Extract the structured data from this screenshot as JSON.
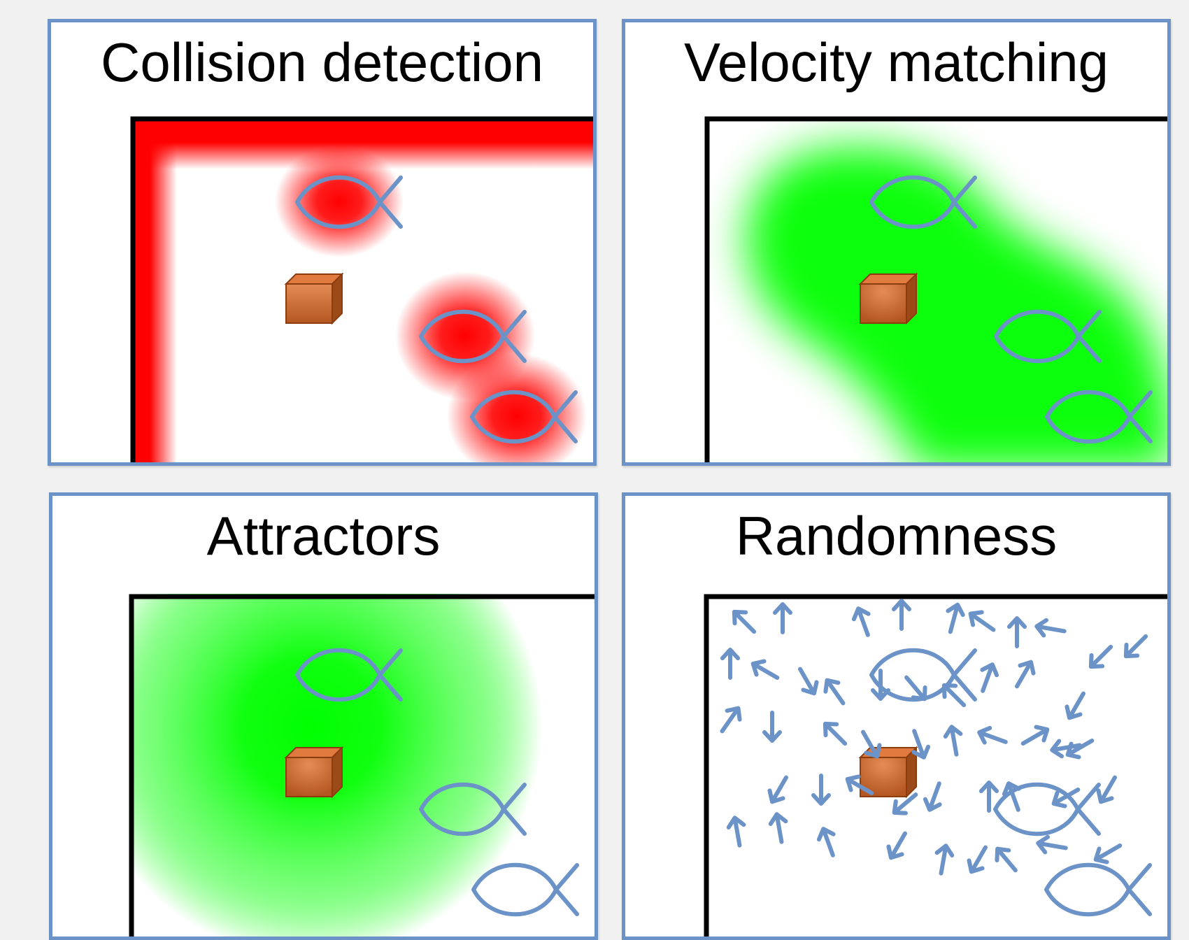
{
  "panels": [
    {
      "id": "collision",
      "title": "Collision detection",
      "field": "red"
    },
    {
      "id": "velocity",
      "title": "Velocity matching",
      "field": "green-band"
    },
    {
      "id": "attractors",
      "title": "Attractors",
      "field": "green-radial"
    },
    {
      "id": "randomness",
      "title": "Randomness",
      "field": "arrows"
    }
  ],
  "colors": {
    "panel_border": "#6b93c7",
    "fish_outline": "#6b93c7",
    "collision_field": "#ff0000",
    "attractor_field": "#00ff00",
    "box": "#c0652a",
    "wall": "#000000"
  },
  "icons": [
    "fish-icon",
    "box-icon",
    "arrow-icon"
  ]
}
